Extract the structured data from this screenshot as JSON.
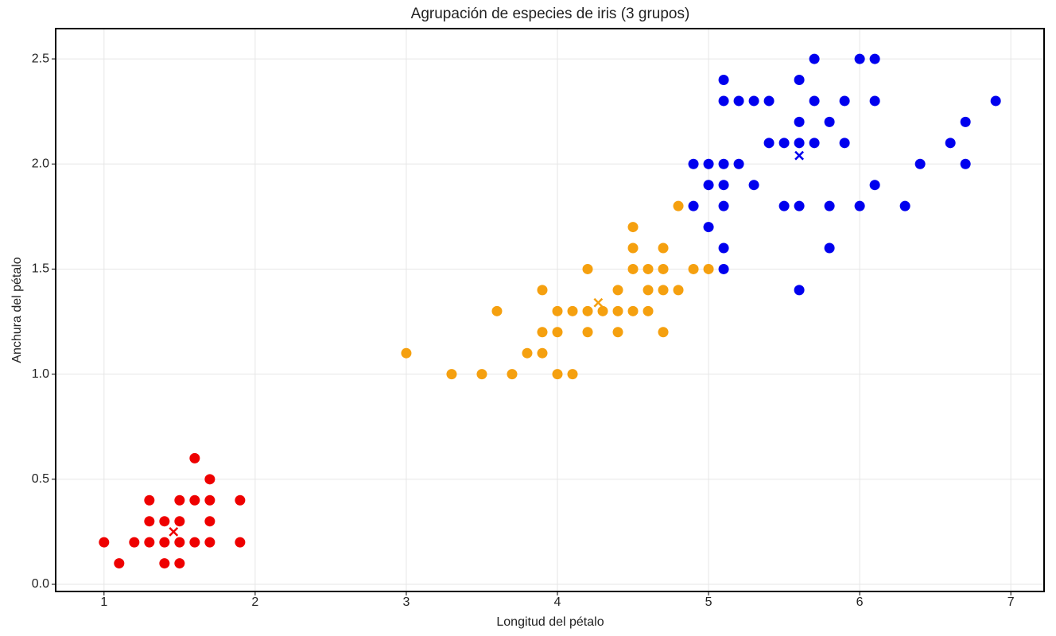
{
  "chart_data": {
    "type": "scatter",
    "title": "Agrupación de especies de iris (3 grupos)",
    "x_label": "Longitud del pétalo",
    "y_label": "Anchura del pétalo",
    "xlim": [
      0.68,
      7.22
    ],
    "ylim": [
      -0.034,
      2.644
    ],
    "xticks": [
      1,
      2,
      3,
      4,
      5,
      6,
      7
    ],
    "yticks": [
      {
        "value": 0,
        "label": "0.0"
      },
      0.5,
      {
        "value": 1,
        "label": "1.0"
      },
      1.5,
      {
        "value": 2,
        "label": "2.0"
      },
      2.5
    ],
    "grid": true,
    "series": [
      {
        "color": "#ee0000",
        "x": [
          1.0,
          1.1,
          1.2,
          1.3,
          1.3,
          1.3,
          1.4,
          1.4,
          1.4,
          1.5,
          1.5,
          1.5,
          1.5,
          1.6,
          1.6,
          1.6,
          1.7,
          1.7,
          1.7,
          1.7,
          1.9,
          1.9
        ],
        "values": [
          0.2,
          0.1,
          0.2,
          0.2,
          0.3,
          0.4,
          0.1,
          0.2,
          0.3,
          0.1,
          0.2,
          0.3,
          0.4,
          0.2,
          0.4,
          0.6,
          0.2,
          0.3,
          0.4,
          0.5,
          0.2,
          0.4
        ],
        "centroid_x": 1.46,
        "centroid_y": 0.25
      },
      {
        "color": "#f5a00f",
        "x": [
          3.0,
          3.3,
          3.5,
          3.6,
          3.7,
          3.8,
          3.9,
          3.9,
          3.9,
          4.0,
          4.0,
          4.0,
          4.1,
          4.1,
          4.2,
          4.2,
          4.2,
          4.3,
          4.4,
          4.4,
          4.4,
          4.5,
          4.5,
          4.5,
          4.5,
          4.6,
          4.6,
          4.6,
          4.7,
          4.7,
          4.7,
          4.7,
          4.8,
          4.8,
          4.9,
          5.0
        ],
        "values": [
          1.1,
          1.0,
          1.0,
          1.3,
          1.0,
          1.1,
          1.1,
          1.2,
          1.4,
          1.0,
          1.2,
          1.3,
          1.0,
          1.3,
          1.2,
          1.3,
          1.5,
          1.3,
          1.2,
          1.3,
          1.4,
          1.3,
          1.5,
          1.6,
          1.7,
          1.3,
          1.4,
          1.5,
          1.2,
          1.4,
          1.5,
          1.6,
          1.4,
          1.8,
          1.5,
          1.5
        ],
        "centroid_x": 4.27,
        "centroid_y": 1.34
      },
      {
        "color": "#0000ee",
        "x": [
          4.9,
          4.9,
          5.0,
          5.0,
          5.0,
          5.1,
          5.1,
          5.1,
          5.1,
          5.1,
          5.1,
          5.1,
          5.2,
          5.2,
          5.3,
          5.3,
          5.4,
          5.4,
          5.5,
          5.5,
          5.6,
          5.6,
          5.6,
          5.6,
          5.6,
          5.7,
          5.7,
          5.7,
          5.8,
          5.8,
          5.8,
          5.9,
          5.9,
          6.0,
          6.0,
          6.1,
          6.1,
          6.1,
          6.3,
          6.4,
          6.6,
          6.7,
          6.7,
          6.9
        ],
        "values": [
          1.8,
          2.0,
          1.7,
          1.9,
          2.0,
          1.5,
          1.6,
          1.8,
          1.9,
          2.0,
          2.3,
          2.4,
          2.0,
          2.3,
          1.9,
          2.3,
          2.1,
          2.3,
          1.8,
          2.1,
          1.4,
          1.8,
          2.1,
          2.2,
          2.4,
          2.1,
          2.3,
          2.5,
          1.6,
          1.8,
          2.2,
          2.1,
          2.3,
          1.8,
          2.5,
          1.9,
          2.3,
          2.5,
          1.8,
          2.0,
          2.1,
          2.0,
          2.2,
          2.3
        ],
        "centroid_x": 5.6,
        "centroid_y": 2.04
      }
    ]
  }
}
